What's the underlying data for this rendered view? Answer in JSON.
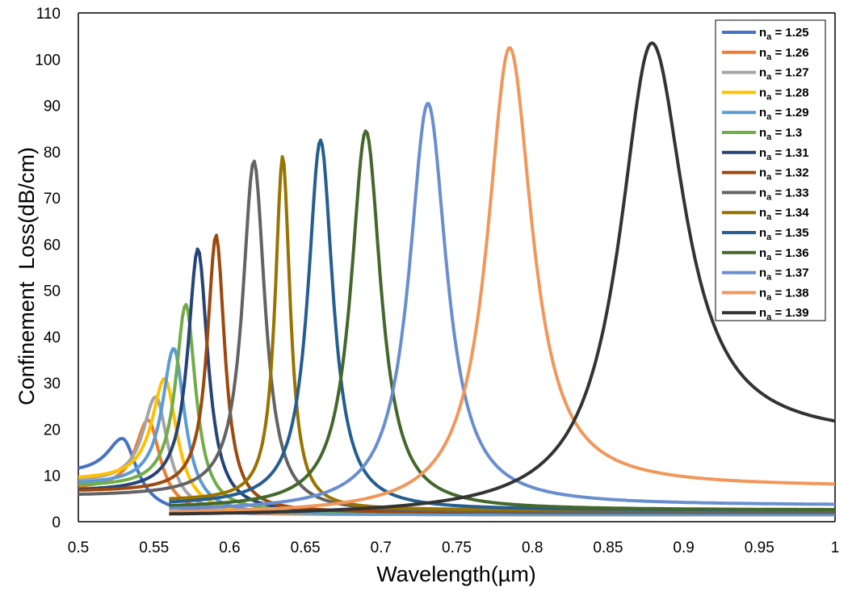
{
  "chart_data": {
    "type": "line",
    "title": "",
    "xlabel": "Wavelength(µm)",
    "ylabel": "Confinement  Loss(dB/cm)",
    "xlim": [
      0.5,
      1.0
    ],
    "ylim": [
      0,
      110
    ],
    "x_ticks": [
      0.5,
      0.55,
      0.6,
      0.65,
      0.7,
      0.75,
      0.8,
      0.85,
      0.9,
      0.95,
      1.0
    ],
    "x_tick_labels": [
      "0.5",
      "0.55",
      "0.6",
      "0.65",
      "0.7",
      "0.75",
      "0.8",
      "0.85",
      "0.9",
      "0.95",
      "1"
    ],
    "y_ticks": [
      0,
      10,
      20,
      30,
      40,
      50,
      60,
      70,
      80,
      90,
      100,
      110
    ],
    "y_tick_labels": [
      "0",
      "10",
      "20",
      "30",
      "40",
      "50",
      "60",
      "70",
      "80",
      "90",
      "100",
      "110"
    ],
    "grid": false,
    "legend_position": "top-right",
    "legend_label_prefix": "n",
    "legend_label_subscript": "a",
    "series": [
      {
        "name": "n_a = 1.25",
        "value_label": " = 1.25",
        "color": "#4472C4",
        "x_start": 0.5,
        "x_end": 1.0,
        "peak_x": 0.529,
        "peak_y": 18,
        "width": 0.012,
        "base_left": 10.5,
        "base_right": 1.5
      },
      {
        "name": "n_a = 1.26",
        "value_label": " = 1.26",
        "color": "#ED7D31",
        "x_start": 0.5,
        "x_end": 1.0,
        "peak_x": 0.546,
        "peak_y": 22,
        "width": 0.01,
        "base_left": 7,
        "base_right": 1.5
      },
      {
        "name": "n_a = 1.27",
        "value_label": " = 1.27",
        "color": "#A5A5A5",
        "x_start": 0.5,
        "x_end": 1.0,
        "peak_x": 0.551,
        "peak_y": 27,
        "width": 0.01,
        "base_left": 8.5,
        "base_right": 1.5
      },
      {
        "name": "n_a = 1.28",
        "value_label": " = 1.28",
        "color": "#FFC000",
        "x_start": 0.5,
        "x_end": 1.0,
        "peak_x": 0.557,
        "peak_y": 31,
        "width": 0.01,
        "base_left": 9,
        "base_right": 1.5
      },
      {
        "name": "n_a = 1.29",
        "value_label": " = 1.29",
        "color": "#5B9BD5",
        "x_start": 0.5,
        "x_end": 1.0,
        "peak_x": 0.563,
        "peak_y": 37.5,
        "width": 0.009,
        "base_left": 8,
        "base_right": 1.5
      },
      {
        "name": "n_a = 1.3",
        "value_label": " = 1.3",
        "color": "#70AD47",
        "x_start": 0.5,
        "x_end": 1.0,
        "peak_x": 0.571,
        "peak_y": 47,
        "width": 0.008,
        "base_left": 7.5,
        "base_right": 2
      },
      {
        "name": "n_a = 1.31",
        "value_label": " = 1.31",
        "color": "#264478",
        "x_start": 0.5,
        "x_end": 1.0,
        "peak_x": 0.579,
        "peak_y": 59,
        "width": 0.008,
        "base_left": 6.5,
        "base_right": 2
      },
      {
        "name": "n_a = 1.32",
        "value_label": " = 1.32",
        "color": "#9E480E",
        "x_start": 0.5,
        "x_end": 1.0,
        "peak_x": 0.591,
        "peak_y": 62,
        "width": 0.007,
        "base_left": 6.5,
        "base_right": 2
      },
      {
        "name": "n_a = 1.33",
        "value_label": " = 1.33",
        "color": "#636363",
        "x_start": 0.5,
        "x_end": 1.0,
        "peak_x": 0.616,
        "peak_y": 78,
        "width": 0.009,
        "base_left": 5.5,
        "base_right": 2
      },
      {
        "name": "n_a = 1.34",
        "value_label": " = 1.34",
        "color": "#997300",
        "x_start": 0.56,
        "x_end": 1.0,
        "peak_x": 0.635,
        "peak_y": 79,
        "width": 0.006,
        "base_left": 4.5,
        "base_right": 2.5
      },
      {
        "name": "n_a = 1.35",
        "value_label": " = 1.35",
        "color": "#255E91",
        "x_start": 0.56,
        "x_end": 1.0,
        "peak_x": 0.66,
        "peak_y": 82.5,
        "width": 0.01,
        "base_left": 3.5,
        "base_right": 2.5
      },
      {
        "name": "n_a = 1.36",
        "value_label": " = 1.36",
        "color": "#43682B",
        "x_start": 0.56,
        "x_end": 1.0,
        "peak_x": 0.69,
        "peak_y": 84.5,
        "width": 0.012,
        "base_left": 2.8,
        "base_right": 2.5
      },
      {
        "name": "n_a = 1.37",
        "value_label": " = 1.37",
        "color": "#698ED0",
        "x_start": 0.56,
        "x_end": 1.0,
        "peak_x": 0.731,
        "peak_y": 90.5,
        "width": 0.015,
        "base_left": 2.2,
        "base_right": 3.5
      },
      {
        "name": "n_a = 1.38",
        "value_label": " = 1.38",
        "color": "#F1975A",
        "x_start": 0.56,
        "x_end": 1.0,
        "peak_x": 0.785,
        "peak_y": 102.5,
        "width": 0.018,
        "base_left": 1.5,
        "base_right": 7.5
      },
      {
        "name": "n_a = 1.39",
        "value_label": " = 1.39",
        "color": "#333333",
        "x_start": 0.56,
        "x_end": 1.0,
        "peak_x": 0.879,
        "peak_y": 103.5,
        "width": 0.026,
        "base_left": 1.0,
        "base_right": 18
      }
    ]
  }
}
